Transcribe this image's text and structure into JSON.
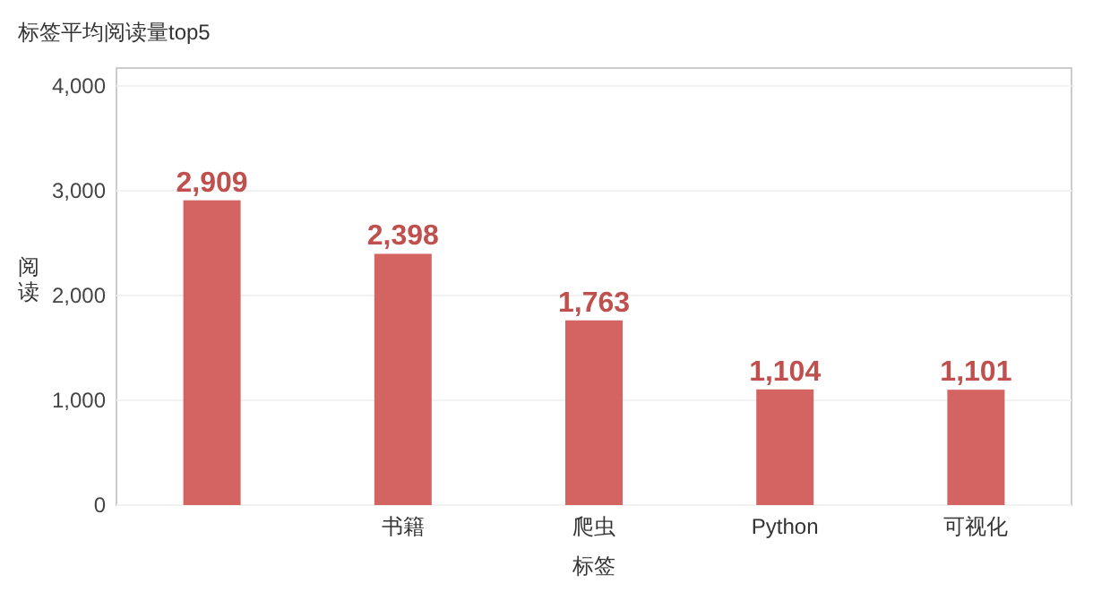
{
  "chart_data": {
    "type": "bar",
    "title": "标签平均阅读量top5",
    "xlabel": "标签",
    "ylabel": "阅读",
    "categories": [
      null,
      "书籍",
      "爬虫",
      "Python",
      "可视化"
    ],
    "values": [
      2909,
      2398,
      1763,
      1104,
      1101
    ],
    "value_labels": [
      "2,909",
      "2,398",
      "1,763",
      "1,104",
      "1,101"
    ],
    "color": "#d46462",
    "ylim": [
      0,
      4000
    ],
    "yticks": [
      {
        "value": 0,
        "label": "0"
      },
      {
        "value": 1000,
        "label": "1,000"
      },
      {
        "value": 2000,
        "label": "2,000"
      },
      {
        "value": 3000,
        "label": "3,000"
      },
      {
        "value": 4000,
        "label": "4,000"
      }
    ],
    "grid": "y"
  }
}
